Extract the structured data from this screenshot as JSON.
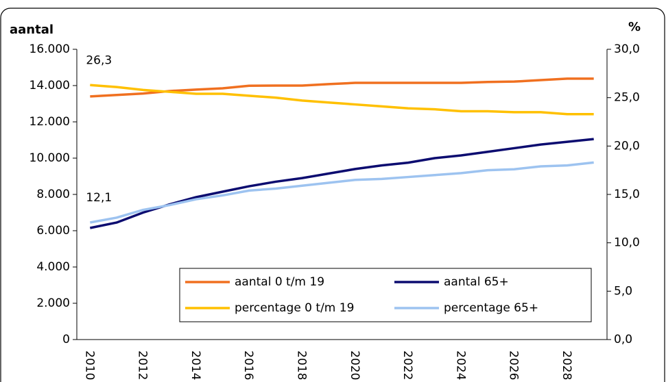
{
  "chart_data": {
    "type": "line",
    "y_label": "aantal",
    "y2_label": "%",
    "categories": [
      "2010",
      null,
      "2012",
      null,
      "2014",
      null,
      "2016",
      null,
      "2018",
      null,
      "2020",
      null,
      "2022",
      null,
      "2024",
      null,
      "2026",
      null,
      "2028",
      null
    ],
    "series": [
      {
        "name": "aantal 0 t/m 19",
        "color": "#f07020",
        "values": [
          13400,
          13480,
          13560,
          13700,
          13780,
          13850,
          13990,
          14000,
          14000,
          14080,
          14150,
          14150,
          14150,
          14150,
          14150,
          14200,
          14220,
          14300,
          14380,
          14380
        ]
      },
      {
        "name": "aantal 65+",
        "color": "#0c0c70",
        "values": [
          6150,
          6450,
          7000,
          7450,
          7850,
          8150,
          8450,
          8700,
          8900,
          9150,
          9400,
          9600,
          9750,
          10000,
          10150,
          10350,
          10550,
          10750,
          10900,
          11050
        ]
      },
      {
        "name": "percentage 0 t/m 19",
        "color": "#ffc000",
        "axis": "y2",
        "values": [
          26.3,
          26.1,
          25.8,
          25.6,
          25.4,
          25.4,
          25.2,
          25.0,
          24.7,
          24.5,
          24.3,
          24.1,
          23.9,
          23.8,
          23.6,
          23.6,
          23.5,
          23.5,
          23.3,
          23.3
        ],
        "value_labels": [
          "26,3",
          null,
          null,
          null,
          null,
          null,
          null,
          null,
          null,
          null,
          null,
          null,
          null,
          null,
          null,
          null,
          null,
          null,
          null,
          null
        ]
      },
      {
        "name": "percentage 65+",
        "color": "#9dc3f0",
        "axis": "y2",
        "values": [
          12.1,
          12.6,
          13.4,
          13.9,
          14.5,
          14.9,
          15.4,
          15.6,
          15.9,
          16.2,
          16.5,
          16.6,
          16.8,
          17.0,
          17.2,
          17.5,
          17.6,
          17.9,
          18.0,
          18.3
        ],
        "value_labels": [
          "12,1",
          null,
          null,
          null,
          null,
          null,
          null,
          null,
          null,
          null,
          null,
          null,
          null,
          null,
          null,
          null,
          null,
          null,
          null,
          null
        ]
      }
    ],
    "ylim": [
      0,
      16000
    ],
    "yticks": [
      0,
      {
        "value": 2000,
        "label": "2.000"
      },
      {
        "value": 4000,
        "label": "4.000"
      },
      {
        "value": 6000,
        "label": "6.000"
      },
      {
        "value": 8000,
        "label": "8.000"
      },
      {
        "value": 10000,
        "label": "10.000"
      },
      {
        "value": 12000,
        "label": "12.000"
      },
      {
        "value": 14000,
        "label": "14.000"
      },
      {
        "value": 16000,
        "label": "16.000"
      }
    ],
    "y2lim": [
      0,
      30
    ],
    "y2ticks": [
      {
        "value": 0,
        "label": "0,0"
      },
      {
        "value": 5,
        "label": "5,0"
      },
      {
        "value": 10,
        "label": "10,0"
      },
      {
        "value": 15,
        "label": "15,0"
      },
      {
        "value": 20,
        "label": "20,0"
      },
      {
        "value": 25,
        "label": "25,0"
      },
      {
        "value": 30,
        "label": "30,0"
      }
    ],
    "legend": "bottom-right"
  }
}
